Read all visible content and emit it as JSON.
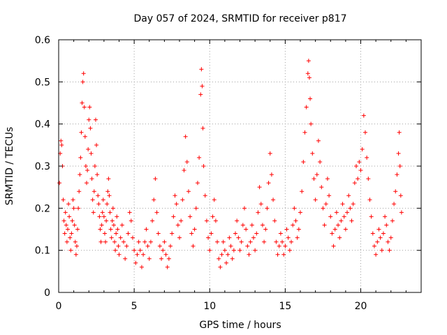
{
  "chart_data": {
    "type": "scatter",
    "title": "Day 057 of 2024, SRMTID for receiver p817",
    "xlabel": "GPS time / hours",
    "ylabel": "SRMTID / TECUs",
    "xlim": [
      0,
      24
    ],
    "ylim": [
      0,
      0.6
    ],
    "x_ticks": [
      0,
      5,
      10,
      15,
      20
    ],
    "x_tick_labels": [
      "0",
      "5",
      "10",
      "15",
      "20"
    ],
    "y_ticks": [
      0,
      0.1,
      0.2,
      0.3,
      0.4,
      0.5,
      0.6
    ],
    "y_tick_labels": [
      "0",
      "0.1",
      "0.2",
      "0.3",
      "0.4",
      "0.5",
      "0.6"
    ],
    "grid": true,
    "marker": "plus",
    "color": "#ff0000",
    "series": [
      {
        "name": "SRMTID",
        "points": [
          [
            0.05,
            0.26
          ],
          [
            0.1,
            0.33
          ],
          [
            0.15,
            0.36
          ],
          [
            0.2,
            0.35
          ],
          [
            0.25,
            0.3
          ],
          [
            0.3,
            0.22
          ],
          [
            0.35,
            0.17
          ],
          [
            0.4,
            0.14
          ],
          [
            0.45,
            0.19
          ],
          [
            0.5,
            0.16
          ],
          [
            0.55,
            0.12
          ],
          [
            0.6,
            0.15
          ],
          [
            0.65,
            0.21
          ],
          [
            0.7,
            0.18
          ],
          [
            0.75,
            0.13
          ],
          [
            0.8,
            0.1
          ],
          [
            0.85,
            0.14
          ],
          [
            0.9,
            0.17
          ],
          [
            0.95,
            0.22
          ],
          [
            1.0,
            0.2
          ],
          [
            1.05,
            0.16
          ],
          [
            1.1,
            0.12
          ],
          [
            1.15,
            0.09
          ],
          [
            1.2,
            0.11
          ],
          [
            1.25,
            0.15
          ],
          [
            1.3,
            0.2
          ],
          [
            1.35,
            0.24
          ],
          [
            1.4,
            0.28
          ],
          [
            1.45,
            0.32
          ],
          [
            1.5,
            0.38
          ],
          [
            1.55,
            0.45
          ],
          [
            1.6,
            0.5
          ],
          [
            1.65,
            0.52
          ],
          [
            1.7,
            0.44
          ],
          [
            1.75,
            0.37
          ],
          [
            1.8,
            0.3
          ],
          [
            1.85,
            0.26
          ],
          [
            1.9,
            0.29
          ],
          [
            1.95,
            0.34
          ],
          [
            2.0,
            0.41
          ],
          [
            2.05,
            0.44
          ],
          [
            2.1,
            0.39
          ],
          [
            2.15,
            0.33
          ],
          [
            2.2,
            0.27
          ],
          [
            2.25,
            0.22
          ],
          [
            2.3,
            0.19
          ],
          [
            2.35,
            0.24
          ],
          [
            2.4,
            0.3
          ],
          [
            2.45,
            0.41
          ],
          [
            2.5,
            0.35
          ],
          [
            2.55,
            0.28
          ],
          [
            2.6,
            0.23
          ],
          [
            2.65,
            0.21
          ],
          [
            2.7,
            0.18
          ],
          [
            2.75,
            0.15
          ],
          [
            2.8,
            0.12
          ],
          [
            2.85,
            0.16
          ],
          [
            2.9,
            0.19
          ],
          [
            2.95,
            0.22
          ],
          [
            3.0,
            0.18
          ],
          [
            3.05,
            0.14
          ],
          [
            3.1,
            0.12
          ],
          [
            3.15,
            0.17
          ],
          [
            3.2,
            0.21
          ],
          [
            3.25,
            0.24
          ],
          [
            3.3,
            0.27
          ],
          [
            3.35,
            0.23
          ],
          [
            3.4,
            0.19
          ],
          [
            3.45,
            0.15
          ],
          [
            3.5,
            0.13
          ],
          [
            3.55,
            0.17
          ],
          [
            3.6,
            0.2
          ],
          [
            3.65,
            0.16
          ],
          [
            3.7,
            0.12
          ],
          [
            3.75,
            0.1
          ],
          [
            3.8,
            0.14
          ],
          [
            3.85,
            0.18
          ],
          [
            3.9,
            0.15
          ],
          [
            3.95,
            0.11
          ],
          [
            4.0,
            0.09
          ],
          [
            4.1,
            0.13
          ],
          [
            4.2,
            0.16
          ],
          [
            4.3,
            0.12
          ],
          [
            4.4,
            0.08
          ],
          [
            4.5,
            0.11
          ],
          [
            4.6,
            0.14
          ],
          [
            4.7,
            0.19
          ],
          [
            4.8,
            0.17
          ],
          [
            4.9,
            0.13
          ],
          [
            5.0,
            0.1
          ],
          [
            5.1,
            0.07
          ],
          [
            5.2,
            0.09
          ],
          [
            5.3,
            0.12
          ],
          [
            5.4,
            0.1
          ],
          [
            5.5,
            0.06
          ],
          [
            5.6,
            0.09
          ],
          [
            5.7,
            0.12
          ],
          [
            5.8,
            0.15
          ],
          [
            5.9,
            0.11
          ],
          [
            6.0,
            0.08
          ],
          [
            6.1,
            0.12
          ],
          [
            6.2,
            0.17
          ],
          [
            6.3,
            0.22
          ],
          [
            6.4,
            0.27
          ],
          [
            6.5,
            0.19
          ],
          [
            6.6,
            0.14
          ],
          [
            6.7,
            0.11
          ],
          [
            6.8,
            0.08
          ],
          [
            6.9,
            0.1
          ],
          [
            7.0,
            0.12
          ],
          [
            7.1,
            0.09
          ],
          [
            7.2,
            0.06
          ],
          [
            7.3,
            0.08
          ],
          [
            7.4,
            0.11
          ],
          [
            7.5,
            0.14
          ],
          [
            7.6,
            0.18
          ],
          [
            7.7,
            0.23
          ],
          [
            7.8,
            0.21
          ],
          [
            7.9,
            0.16
          ],
          [
            8.0,
            0.13
          ],
          [
            8.1,
            0.17
          ],
          [
            8.2,
            0.22
          ],
          [
            8.3,
            0.29
          ],
          [
            8.4,
            0.37
          ],
          [
            8.5,
            0.31
          ],
          [
            8.6,
            0.24
          ],
          [
            8.7,
            0.18
          ],
          [
            8.8,
            0.14
          ],
          [
            8.9,
            0.11
          ],
          [
            9.0,
            0.15
          ],
          [
            9.1,
            0.2
          ],
          [
            9.2,
            0.26
          ],
          [
            9.3,
            0.32
          ],
          [
            9.4,
            0.47
          ],
          [
            9.45,
            0.53
          ],
          [
            9.5,
            0.49
          ],
          [
            9.55,
            0.39
          ],
          [
            9.6,
            0.3
          ],
          [
            9.7,
            0.23
          ],
          [
            9.8,
            0.17
          ],
          [
            9.9,
            0.13
          ],
          [
            10.0,
            0.1
          ],
          [
            10.1,
            0.14
          ],
          [
            10.2,
            0.18
          ],
          [
            10.3,
            0.22
          ],
          [
            10.4,
            0.17
          ],
          [
            10.5,
            0.12
          ],
          [
            10.6,
            0.08
          ],
          [
            10.7,
            0.06
          ],
          [
            10.8,
            0.09
          ],
          [
            10.9,
            0.12
          ],
          [
            11.0,
            0.1
          ],
          [
            11.1,
            0.07
          ],
          [
            11.2,
            0.09
          ],
          [
            11.3,
            0.13
          ],
          [
            11.4,
            0.11
          ],
          [
            11.5,
            0.08
          ],
          [
            11.6,
            0.1
          ],
          [
            11.7,
            0.14
          ],
          [
            11.8,
            0.17
          ],
          [
            11.9,
            0.13
          ],
          [
            12.0,
            0.1
          ],
          [
            12.1,
            0.12
          ],
          [
            12.2,
            0.16
          ],
          [
            12.3,
            0.2
          ],
          [
            12.4,
            0.15
          ],
          [
            12.5,
            0.11
          ],
          [
            12.6,
            0.09
          ],
          [
            12.7,
            0.12
          ],
          [
            12.8,
            0.16
          ],
          [
            12.9,
            0.13
          ],
          [
            13.0,
            0.1
          ],
          [
            13.1,
            0.14
          ],
          [
            13.2,
            0.19
          ],
          [
            13.3,
            0.25
          ],
          [
            13.4,
            0.21
          ],
          [
            13.5,
            0.16
          ],
          [
            13.6,
            0.12
          ],
          [
            13.7,
            0.15
          ],
          [
            13.8,
            0.2
          ],
          [
            13.9,
            0.26
          ],
          [
            14.0,
            0.33
          ],
          [
            14.1,
            0.28
          ],
          [
            14.2,
            0.22
          ],
          [
            14.3,
            0.17
          ],
          [
            14.4,
            0.12
          ],
          [
            14.5,
            0.09
          ],
          [
            14.6,
            0.11
          ],
          [
            14.7,
            0.14
          ],
          [
            14.8,
            0.12
          ],
          [
            14.9,
            0.09
          ],
          [
            15.0,
            0.11
          ],
          [
            15.1,
            0.15
          ],
          [
            15.2,
            0.13
          ],
          [
            15.3,
            0.1
          ],
          [
            15.4,
            0.12
          ],
          [
            15.5,
            0.16
          ],
          [
            15.6,
            0.2
          ],
          [
            15.7,
            0.17
          ],
          [
            15.8,
            0.13
          ],
          [
            15.9,
            0.15
          ],
          [
            16.0,
            0.19
          ],
          [
            16.1,
            0.24
          ],
          [
            16.2,
            0.31
          ],
          [
            16.3,
            0.38
          ],
          [
            16.4,
            0.44
          ],
          [
            16.5,
            0.52
          ],
          [
            16.55,
            0.55
          ],
          [
            16.6,
            0.51
          ],
          [
            16.65,
            0.46
          ],
          [
            16.7,
            0.4
          ],
          [
            16.8,
            0.33
          ],
          [
            16.9,
            0.27
          ],
          [
            17.0,
            0.22
          ],
          [
            17.1,
            0.28
          ],
          [
            17.2,
            0.36
          ],
          [
            17.3,
            0.31
          ],
          [
            17.4,
            0.25
          ],
          [
            17.5,
            0.2
          ],
          [
            17.6,
            0.16
          ],
          [
            17.7,
            0.21
          ],
          [
            17.8,
            0.27
          ],
          [
            17.9,
            0.23
          ],
          [
            18.0,
            0.18
          ],
          [
            18.1,
            0.14
          ],
          [
            18.2,
            0.11
          ],
          [
            18.3,
            0.15
          ],
          [
            18.4,
            0.19
          ],
          [
            18.5,
            0.16
          ],
          [
            18.6,
            0.13
          ],
          [
            18.7,
            0.17
          ],
          [
            18.8,
            0.21
          ],
          [
            18.9,
            0.18
          ],
          [
            19.0,
            0.15
          ],
          [
            19.1,
            0.19
          ],
          [
            19.2,
            0.23
          ],
          [
            19.3,
            0.2
          ],
          [
            19.4,
            0.17
          ],
          [
            19.5,
            0.21
          ],
          [
            19.6,
            0.26
          ],
          [
            19.7,
            0.3
          ],
          [
            19.8,
            0.27
          ],
          [
            19.9,
            0.31
          ],
          [
            20.0,
            0.29
          ],
          [
            20.1,
            0.34
          ],
          [
            20.2,
            0.42
          ],
          [
            20.3,
            0.38
          ],
          [
            20.4,
            0.32
          ],
          [
            20.5,
            0.27
          ],
          [
            20.6,
            0.22
          ],
          [
            20.7,
            0.18
          ],
          [
            20.8,
            0.14
          ],
          [
            20.9,
            0.11
          ],
          [
            21.0,
            0.09
          ],
          [
            21.1,
            0.12
          ],
          [
            21.2,
            0.15
          ],
          [
            21.3,
            0.13
          ],
          [
            21.4,
            0.1
          ],
          [
            21.5,
            0.14
          ],
          [
            21.6,
            0.18
          ],
          [
            21.7,
            0.16
          ],
          [
            21.8,
            0.12
          ],
          [
            21.9,
            0.1
          ],
          [
            22.0,
            0.13
          ],
          [
            22.1,
            0.17
          ],
          [
            22.2,
            0.21
          ],
          [
            22.3,
            0.24
          ],
          [
            22.4,
            0.28
          ],
          [
            22.5,
            0.33
          ],
          [
            22.55,
            0.38
          ],
          [
            22.6,
            0.3
          ],
          [
            22.65,
            0.23
          ],
          [
            22.7,
            0.19
          ]
        ]
      }
    ]
  }
}
